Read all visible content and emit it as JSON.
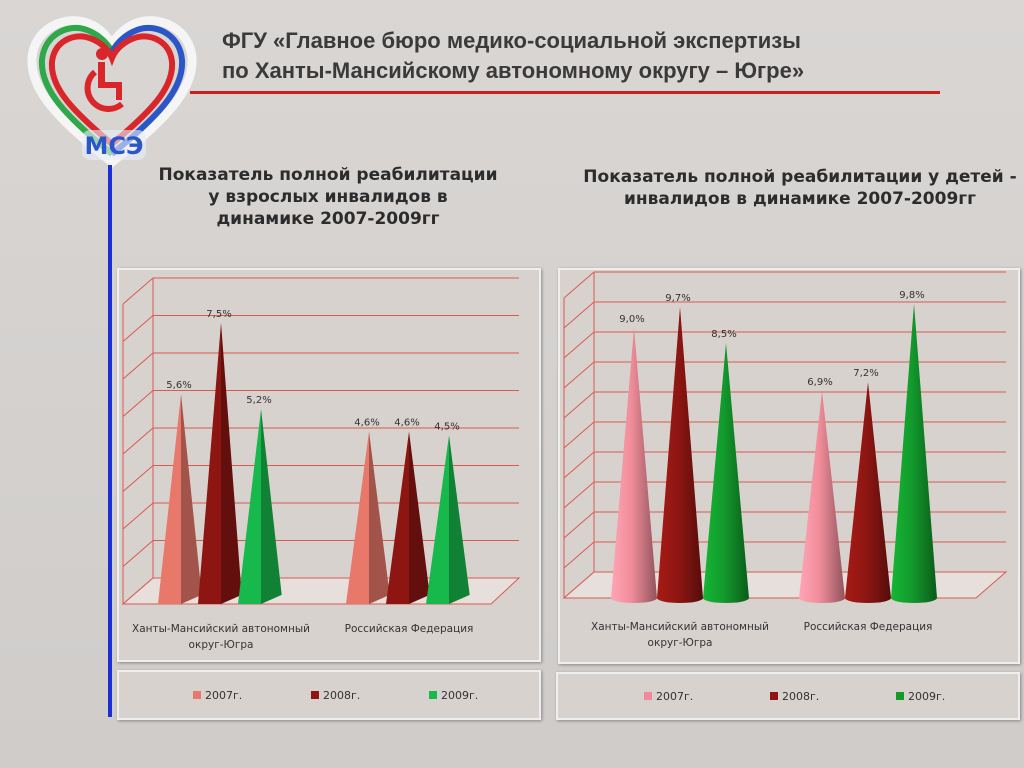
{
  "header": {
    "title_line1": "ФГУ «Главное бюро медико-социальной экспертизы",
    "title_line2": "по Ханты-Мансийскому автономному округу – Югре»",
    "logo_text": "МСЭ"
  },
  "colors": {
    "y2007_left": "#e8786a",
    "y2008": "#8e1612",
    "y2009_left": "#17b84c",
    "y2007_right": "#f08c9a",
    "y2009_right": "#129a2c",
    "rule_red": "#cc1e1e",
    "rule_blue": "#1c2fd6"
  },
  "chart_data": [
    {
      "type": "bar",
      "shape": "pyramid",
      "title_lines": [
        "Показатель полной реабилитации",
        "у взрослых инвалидов в",
        "динамике 2007-2009гг"
      ],
      "categories": [
        "Ханты-Мансийский автономный округ-Югра",
        "Российская Федерация"
      ],
      "category_lines": [
        [
          "Ханты-Мансийский автономный",
          "округ-Югра"
        ],
        [
          "Российская Федерация"
        ]
      ],
      "series": [
        {
          "name": "2007г.",
          "values": [
            5.6,
            4.6
          ],
          "labels": [
            "5,6%",
            "4,6%"
          ]
        },
        {
          "name": "2008г.",
          "values": [
            7.5,
            4.6
          ],
          "labels": [
            "7,5%",
            "4,6%"
          ]
        },
        {
          "name": "2009г.",
          "values": [
            5.2,
            4.5
          ],
          "labels": [
            "5,2%",
            "4,5%"
          ]
        }
      ],
      "ylim": [
        0,
        8
      ],
      "grid": true,
      "legend": "bottom"
    },
    {
      "type": "bar",
      "shape": "cone",
      "title_lines": [
        "Показатель полной реабилитации у детей -",
        "инвалидов в динамике 2007-2009гг"
      ],
      "categories": [
        "Ханты-Мансийский автономный округ-Югра",
        "Российская Федерация"
      ],
      "category_lines": [
        [
          "Ханты-Мансийский автономный",
          "округ-Югра"
        ],
        [
          "Российская Федерация"
        ]
      ],
      "series": [
        {
          "name": "2007г.",
          "values": [
            9.0,
            6.9
          ],
          "labels": [
            "9,0%",
            "6,9%"
          ]
        },
        {
          "name": "2008г.",
          "values": [
            9.7,
            7.2
          ],
          "labels": [
            "9,7%",
            "7,2%"
          ]
        },
        {
          "name": "2009г.",
          "values": [
            8.5,
            9.8
          ],
          "labels": [
            "8,5%",
            "9,8%"
          ]
        }
      ],
      "ylim": [
        0,
        10
      ],
      "grid": true,
      "legend": "bottom"
    }
  ]
}
